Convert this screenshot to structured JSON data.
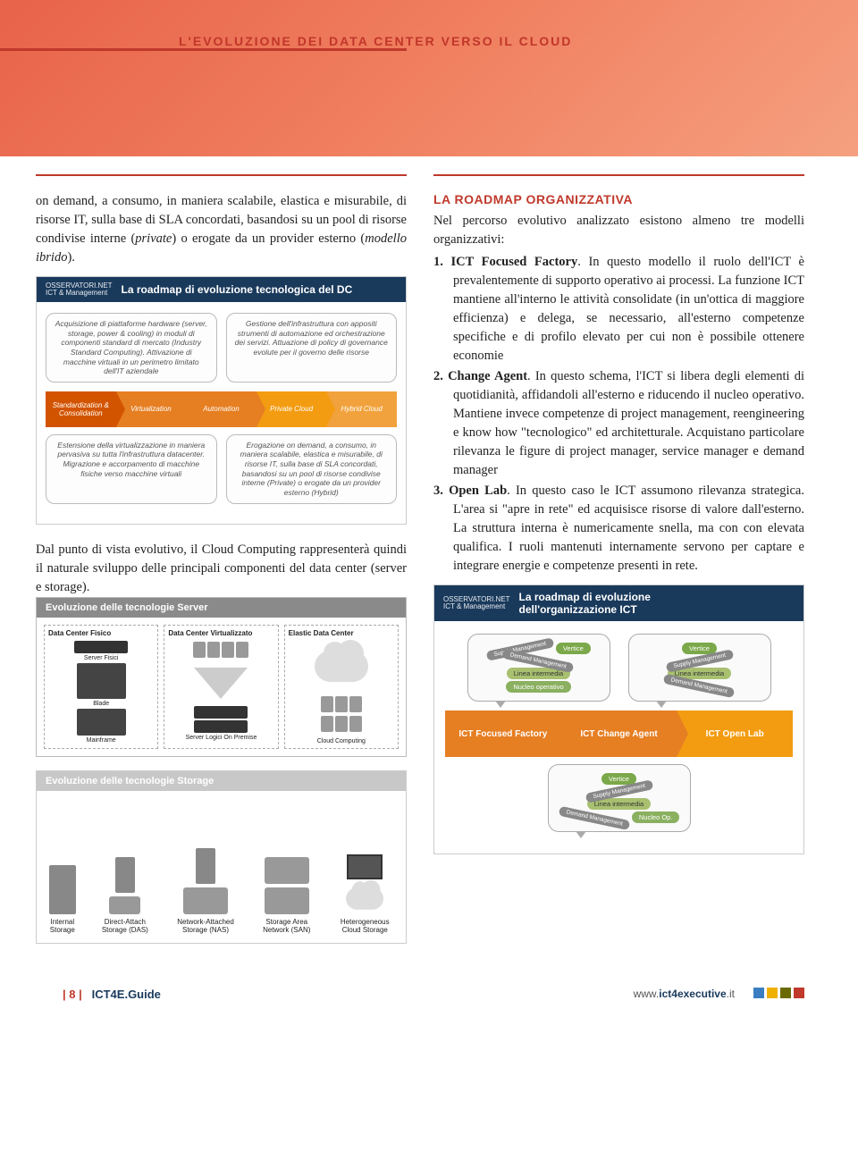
{
  "header": {
    "title": "L'EVOLUZIONE DEI DATA CENTER VERSO IL CLOUD",
    "bg_gradient": [
      "#e8634a",
      "#f08060",
      "#f5a080"
    ],
    "title_color": "#c1362a"
  },
  "left_col": {
    "para1_html": "on demand, a consumo, in maniera scalabile, elastica e misurabile, di risorse IT, sulla base di SLA concordati, basandosi su un pool di risorse condivise interne (<i>private</i>) o erogate da un provider esterno (<i>modello ibrido</i>).",
    "para2": "Dal punto di vista evolutivo, il Cloud Computing rappresenterà quindi il naturale sviluppo delle principali componenti del data center (server e storage)."
  },
  "right_col": {
    "section_title": "LA ROADMAP ORGANIZZATIVA",
    "intro": "Nel percorso evolutivo analizzato esistono almeno tre modelli organizzativi:",
    "items": [
      {
        "num": "1.",
        "term": "ICT Focused Factory",
        "text": ". In questo modello il ruolo dell'ICT è prevalentemente di supporto operativo ai processi. La funzione ICT mantiene all'interno le attività consolidate (in un'ottica di maggiore efficienza) e delega, se necessario, all'esterno competenze specifiche e di profilo elevato per cui non è possibile ottenere economie"
      },
      {
        "num": "2.",
        "term": "Change Agent",
        "text": ". In questo schema, l'ICT si libera degli elementi di quotidianità, affidandoli all'esterno e riducendo il nucleo operativo. Mantiene invece competenze di project management, reengineering e know how \"tecnologico\" ed architetturale. Acquistano particolare rilevanza le figure di project manager, service manager e demand manager"
      },
      {
        "num": "3.",
        "term": "Open Lab",
        "text": ". In questo caso le ICT assumono rilevanza strategica. L'area si \"apre in rete\" ed acquisisce risorse di valore dall'esterno. La struttura interna è numericamente snella, ma con con elevata qualifica. I ruoli mantenuti internamente servono per captare e integrare energie e competenze presenti in rete."
      }
    ]
  },
  "fig1": {
    "logo_top": "OSSERVATORI.NET",
    "logo_bottom": "ICT & Management",
    "title": "La roadmap di evoluzione tecnologica del DC",
    "header_bg": "#1a3a5c",
    "top_notes": [
      "Acquisizione di piattaforme hardware (server, storage, power & cooling) in moduli di componenti standard di mercato (Industry Standard Computing). Attivazione di macchine virtuali in un perimetro limitato dell'IT aziendale",
      "Gestione dell'infrastruttura con appositi strumenti di automazione ed orchestrazione dei servizi. Attuazione di policy di governance evolute per il governo delle risorse"
    ],
    "stages": [
      {
        "label": "Standardization & Consolidation",
        "color": "#d35400"
      },
      {
        "label": "Virtualization",
        "color": "#e67e22"
      },
      {
        "label": "Automation",
        "color": "#e67e22"
      },
      {
        "label": "Private Cloud",
        "color": "#f39c12"
      },
      {
        "label": "Hybrid Cloud",
        "color": "#f1a23c"
      }
    ],
    "bottom_notes": [
      "Estensione della virtualizzazione in maniera pervasiva su tutta l'infrastruttura datacenter. Migrazione e accorpamento di macchine fisiche verso macchine virtuali",
      "Erogazione on demand, a consumo, in maniera scalabile, elastica e misurabile, di risorse IT, sulla base di SLA concordati, basandosi su un pool di risorse condivise interne (Private) o erogate da un provider esterno (Hybrid)"
    ]
  },
  "fig2": {
    "title": "Evoluzione delle tecnologie Server",
    "header_bg": "#8a8a8a",
    "cols": [
      {
        "title": "Data Center Fisico",
        "items": [
          "Server Fisici",
          "Blade",
          "Mainframe"
        ]
      },
      {
        "title": "Data Center Virtualizzato",
        "items": [
          "Server Logici On Premise"
        ]
      },
      {
        "title": "Elastic Data Center",
        "items": [
          "Cloud Computing"
        ]
      }
    ]
  },
  "fig3": {
    "title": "Evoluzione delle tecnologie Storage",
    "header_bg": "#c8c8c8",
    "items": [
      {
        "label": "Internal Storage"
      },
      {
        "label": "Direct-Attach Storage (DAS)"
      },
      {
        "label": "Network-Attached Storage (NAS)"
      },
      {
        "label": "Storage Area Network (SAN)"
      },
      {
        "label": "Heterogeneous Cloud Storage"
      }
    ]
  },
  "fig4": {
    "logo_top": "OSSERVATORI.NET",
    "logo_bottom": "ICT & Management",
    "title_line1": "La roadmap di evoluzione",
    "title_line2": "dell'organizzazione ICT",
    "header_bg": "#1a3a5c",
    "bubbles_top": [
      {
        "ovals": [
          {
            "t": "Supply Management",
            "c": "rot"
          },
          {
            "t": "Vertice",
            "c": "v"
          },
          {
            "t": "Demand Management",
            "c": "rot2"
          },
          {
            "t": "Linea intermedia",
            "c": "li"
          },
          {
            "t": "Nucleo operativo",
            "c": "no"
          }
        ]
      },
      {
        "ovals": [
          {
            "t": "Vertice",
            "c": "v"
          },
          {
            "t": "Supply Management",
            "c": "rot"
          },
          {
            "t": "Linea intermedia",
            "c": "li"
          },
          {
            "t": "Demand Management",
            "c": "rot2"
          }
        ]
      }
    ],
    "stages": [
      {
        "label": "ICT Focused Factory",
        "color": "#e67e22"
      },
      {
        "label": "ICT Change Agent",
        "color": "#e67e22"
      },
      {
        "label": "ICT Open Lab",
        "color": "#f39c12"
      }
    ],
    "bubble_bottom": {
      "ovals": [
        {
          "t": "Vertice",
          "c": "v"
        },
        {
          "t": "Supply Management",
          "c": "rot"
        },
        {
          "t": "Linea intermedia",
          "c": "li"
        },
        {
          "t": "Demand Management",
          "c": "rot2"
        },
        {
          "t": "Nucleo Op.",
          "c": "no"
        }
      ]
    }
  },
  "footer": {
    "page": "8",
    "guide": "ICT4E.Guide",
    "url_pre": "www.",
    "url_bold": "ict4executive",
    "url_suf": ".it",
    "squares": [
      "#3a7ec1",
      "#f0b000",
      "#6a6a00",
      "#c0392b"
    ]
  }
}
